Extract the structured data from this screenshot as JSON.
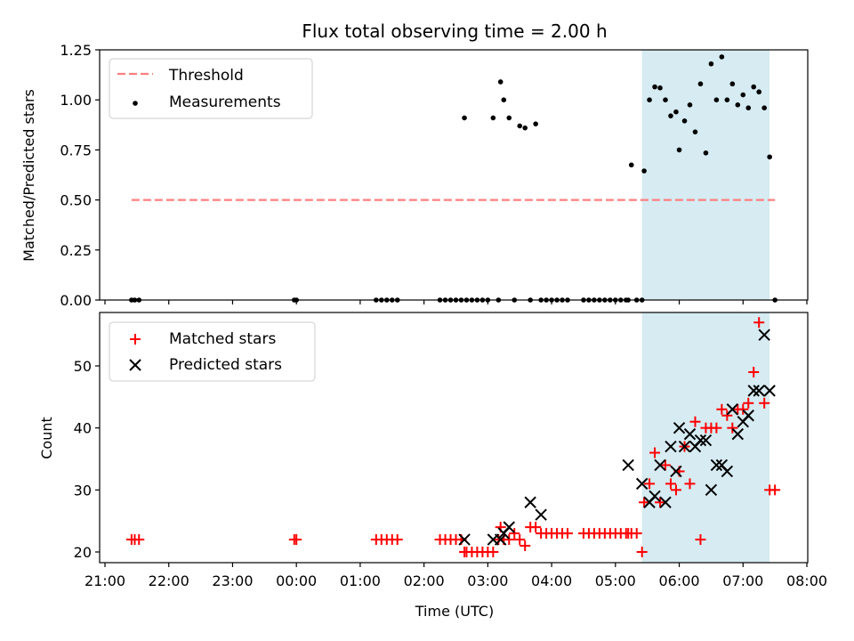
{
  "title": "Flux total observing time = 2.00 h",
  "colors": {
    "threshold": "#ff7f7f",
    "matched": "#ff0000",
    "predicted": "#000000",
    "shade": "#add8e6",
    "measurement": "#000000"
  },
  "chart_data": [
    {
      "type": "scatter",
      "ylabel": "Matched/Predicted stars",
      "xlabel": "",
      "xlim": [
        "21:00",
        "08:00"
      ],
      "ylim": [
        0,
        1.25
      ],
      "yticks": [
        "0.00",
        "0.25",
        "0.50",
        "0.75",
        "1.00",
        "1.25"
      ],
      "grid": false,
      "legend": {
        "placement": "top-left",
        "entries": [
          "Threshold",
          "Measurements"
        ]
      },
      "shaded_interval": {
        "from": "05:25",
        "to": "07:25"
      },
      "threshold": {
        "name": "Threshold",
        "value": 0.5,
        "x_from": "21:25",
        "x_to": "07:30"
      },
      "series": [
        {
          "name": "Measurements",
          "x": [
            "21:25",
            "21:28",
            "21:32",
            "23:58",
            "00:00",
            "01:15",
            "01:20",
            "01:25",
            "01:30",
            "01:35",
            "02:15",
            "02:20",
            "02:25",
            "02:30",
            "02:35",
            "02:38",
            "02:40",
            "02:45",
            "02:50",
            "02:55",
            "03:00",
            "03:05",
            "03:10",
            "03:12",
            "03:15",
            "03:20",
            "03:25",
            "03:30",
            "03:35",
            "03:40",
            "03:45",
            "03:50",
            "03:55",
            "04:00",
            "04:05",
            "04:10",
            "04:15",
            "04:30",
            "04:35",
            "04:40",
            "04:45",
            "04:50",
            "04:55",
            "05:00",
            "05:05",
            "05:10",
            "05:12",
            "05:15",
            "05:20",
            "05:25",
            "05:27",
            "05:32",
            "05:37",
            "05:42",
            "05:47",
            "05:52",
            "05:57",
            "06:00",
            "06:05",
            "06:10",
            "06:15",
            "06:20",
            "06:25",
            "06:30",
            "06:35",
            "06:40",
            "06:45",
            "06:50",
            "06:55",
            "07:00",
            "07:05",
            "07:10",
            "07:15",
            "07:20",
            "07:25",
            "07:30"
          ],
          "y": [
            0,
            0,
            0,
            0,
            0,
            0,
            0,
            0,
            0,
            0,
            0,
            0,
            0,
            0,
            0,
            0.91,
            0,
            0,
            0,
            0,
            0,
            0.91,
            0,
            1.09,
            1.0,
            0.91,
            0,
            0.87,
            0.86,
            0,
            0.88,
            0,
            0,
            0,
            0,
            0,
            0,
            0,
            0,
            0,
            0,
            0,
            0,
            0,
            0,
            0,
            0,
            0.675,
            0,
            0,
            0.645,
            1.0,
            1.065,
            1.06,
            1.0,
            0.92,
            0.94,
            0.75,
            0.895,
            0.975,
            0.84,
            1.08,
            0.735,
            1.18,
            1.0,
            1.215,
            1.0,
            1.08,
            0.975,
            1.025,
            0.96,
            1.065,
            1.04,
            0.96,
            0.715,
            0
          ]
        }
      ]
    },
    {
      "type": "scatter",
      "ylabel": "Count",
      "xlabel": "Time (UTC)",
      "xlim": [
        "21:00",
        "08:00"
      ],
      "ylim": [
        18,
        59
      ],
      "xticks": [
        "21:00",
        "22:00",
        "23:00",
        "00:00",
        "01:00",
        "02:00",
        "03:00",
        "04:00",
        "05:00",
        "06:00",
        "07:00",
        "08:00"
      ],
      "yticks": [
        "20",
        "30",
        "40",
        "50"
      ],
      "grid": false,
      "legend": {
        "placement": "top-left",
        "entries": [
          "Matched stars",
          "Predicted stars"
        ]
      },
      "shaded_interval": {
        "from": "05:25",
        "to": "07:25"
      },
      "series": [
        {
          "name": "Matched stars",
          "x": [
            "21:25",
            "21:28",
            "21:32",
            "23:58",
            "00:00",
            "01:15",
            "01:20",
            "01:25",
            "01:30",
            "01:35",
            "02:15",
            "02:20",
            "02:25",
            "02:30",
            "02:35",
            "02:38",
            "02:40",
            "02:45",
            "02:50",
            "02:55",
            "03:00",
            "03:05",
            "03:10",
            "03:12",
            "03:15",
            "03:20",
            "03:25",
            "03:30",
            "03:35",
            "03:40",
            "03:45",
            "03:50",
            "03:55",
            "04:00",
            "04:05",
            "04:10",
            "04:15",
            "04:30",
            "04:35",
            "04:40",
            "04:45",
            "04:50",
            "04:55",
            "05:00",
            "05:05",
            "05:10",
            "05:12",
            "05:15",
            "05:20",
            "05:25",
            "05:27",
            "05:32",
            "05:37",
            "05:42",
            "05:47",
            "05:52",
            "05:57",
            "06:00",
            "06:05",
            "06:10",
            "06:15",
            "06:20",
            "06:25",
            "06:30",
            "06:35",
            "06:40",
            "06:45",
            "06:50",
            "06:55",
            "07:00",
            "07:05",
            "07:10",
            "07:15",
            "07:20",
            "07:25",
            "07:30"
          ],
          "y": [
            22,
            22,
            22,
            22,
            22,
            22,
            22,
            22,
            22,
            22,
            22,
            22,
            22,
            22,
            22,
            20,
            20,
            20,
            20,
            20,
            20,
            20,
            22,
            24,
            22,
            22,
            23,
            22,
            21,
            24,
            24,
            23,
            23,
            23,
            23,
            23,
            23,
            23,
            23,
            23,
            23,
            23,
            23,
            23,
            23,
            23,
            23,
            23,
            23,
            20,
            28,
            31,
            36,
            28,
            34,
            31,
            30,
            33,
            37,
            31,
            41,
            22,
            40,
            40,
            40,
            43,
            42,
            40,
            43,
            43,
            44,
            49,
            57,
            44,
            30,
            30
          ]
        },
        {
          "name": "Predicted stars",
          "x": [
            "02:38",
            "03:05",
            "03:12",
            "03:15",
            "03:20",
            "03:40",
            "03:50",
            "05:12",
            "05:25",
            "05:32",
            "05:37",
            "05:42",
            "05:47",
            "05:52",
            "05:57",
            "06:00",
            "06:05",
            "06:10",
            "06:15",
            "06:20",
            "06:25",
            "06:30",
            "06:35",
            "06:40",
            "06:45",
            "06:50",
            "06:55",
            "07:00",
            "07:05",
            "07:10",
            "07:15",
            "07:20",
            "07:25"
          ],
          "y": [
            22,
            22,
            22,
            23,
            24,
            28,
            26,
            34,
            31,
            28,
            29,
            34,
            28,
            37,
            33,
            40,
            37,
            39,
            37,
            38,
            38,
            30,
            34,
            34,
            33,
            43,
            39,
            41,
            42,
            46,
            46,
            55,
            46
          ]
        }
      ]
    }
  ]
}
